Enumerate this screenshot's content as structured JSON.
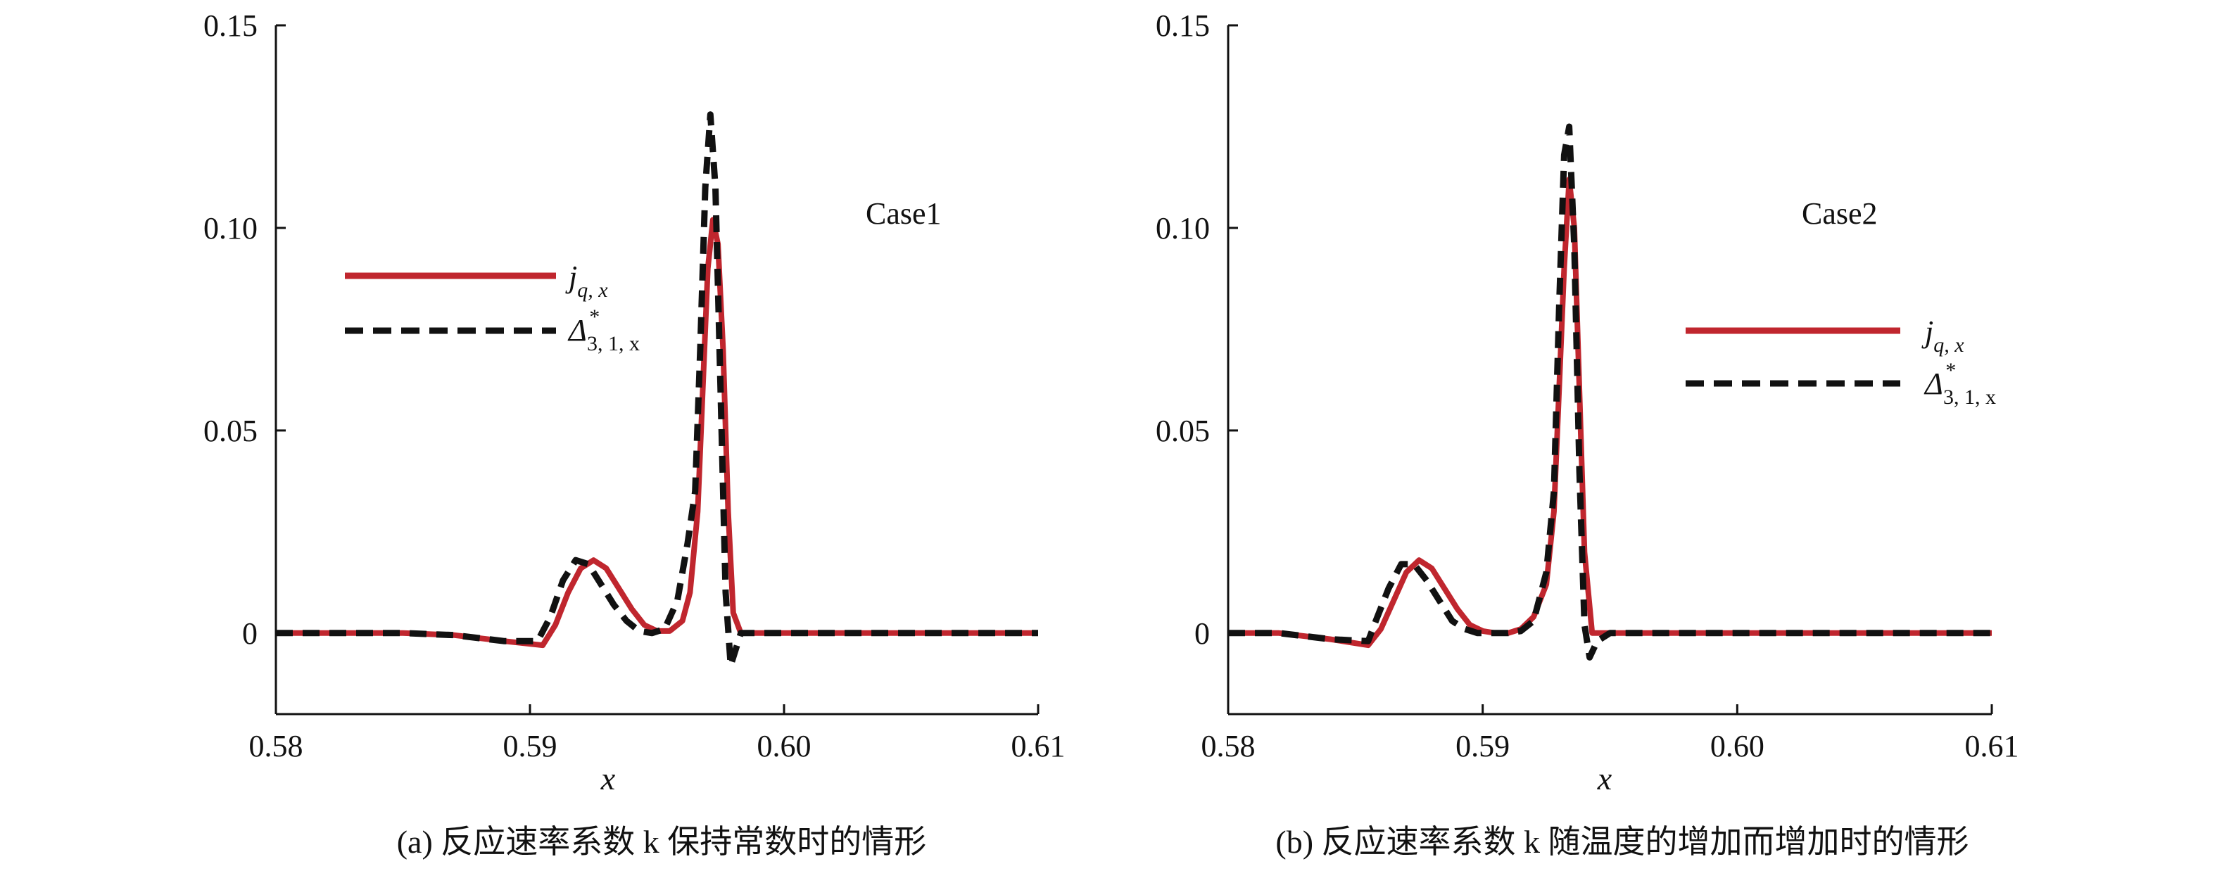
{
  "figure": {
    "panel_a_caption": "(a) 反应速率系数 k 保持常数时的情形",
    "panel_b_caption": "(b) 反应速率系数 k 随温度的增加而增加时的情形"
  },
  "legend": {
    "j_main": "j",
    "j_sub": "q, x",
    "d_main": "Δ",
    "d_sup": "*",
    "d_sub": "3, 1, x"
  },
  "colors": {
    "jq": "#c0262e",
    "delta": "#111111",
    "axis": "#111111"
  },
  "chart_data": [
    {
      "type": "line",
      "panel": "a",
      "annotation": "Case1",
      "title": "",
      "xlabel": "x",
      "ylabel": "",
      "xlim": [
        0.58,
        0.61
      ],
      "ylim": [
        -0.02,
        0.15
      ],
      "xticks": [
        "0.58",
        "0.59",
        "0.60",
        "0.61"
      ],
      "yticks": [
        "0",
        "0.05",
        "0.10",
        "0.15"
      ],
      "grid": false,
      "legend_position": "left, upper-middle",
      "series": [
        {
          "name": "j_{q,x}",
          "style": "solid",
          "x": [
            0.58,
            0.585,
            0.587,
            0.589,
            0.5905,
            0.591,
            0.5915,
            0.592,
            0.5925,
            0.593,
            0.5935,
            0.594,
            0.5945,
            0.595,
            0.5955,
            0.596,
            0.5963,
            0.5966,
            0.5968,
            0.597,
            0.5972,
            0.5974,
            0.5976,
            0.5978,
            0.598,
            0.5983,
            0.599,
            0.61
          ],
          "y": [
            0,
            0,
            -0.0005,
            -0.002,
            -0.003,
            0.002,
            0.01,
            0.016,
            0.018,
            0.016,
            0.011,
            0.006,
            0.002,
            0.0005,
            0.0005,
            0.003,
            0.01,
            0.03,
            0.06,
            0.09,
            0.102,
            0.096,
            0.07,
            0.03,
            0.005,
            0,
            0,
            0
          ]
        },
        {
          "name": "Δ*_{3,1,x}",
          "style": "dashed",
          "x": [
            0.58,
            0.585,
            0.587,
            0.589,
            0.5903,
            0.5908,
            0.5913,
            0.5918,
            0.5923,
            0.5928,
            0.5933,
            0.5938,
            0.5943,
            0.5948,
            0.5953,
            0.5958,
            0.5962,
            0.5965,
            0.5967,
            0.5969,
            0.5971,
            0.5973,
            0.5975,
            0.5977,
            0.5979,
            0.5981,
            0.5983,
            0.5986,
            0.599,
            0.61
          ],
          "y": [
            0,
            0,
            -0.0005,
            -0.002,
            -0.002,
            0.004,
            0.013,
            0.018,
            0.017,
            0.012,
            0.007,
            0.003,
            0.0005,
            0,
            0.001,
            0.008,
            0.022,
            0.035,
            0.07,
            0.11,
            0.128,
            0.11,
            0.06,
            0.01,
            -0.008,
            -0.004,
            0,
            0,
            0,
            0
          ]
        }
      ]
    },
    {
      "type": "line",
      "panel": "b",
      "annotation": "Case2",
      "title": "",
      "xlabel": "x",
      "ylabel": "",
      "xlim": [
        0.58,
        0.61
      ],
      "ylim": [
        -0.02,
        0.15
      ],
      "xticks": [
        "0.58",
        "0.59",
        "0.60",
        "0.61"
      ],
      "yticks": [
        "0",
        "0.05",
        "0.10",
        "0.15"
      ],
      "grid": false,
      "legend_position": "right, middle",
      "series": [
        {
          "name": "j_{q,x}",
          "style": "solid",
          "x": [
            0.58,
            0.582,
            0.584,
            0.5855,
            0.586,
            0.5865,
            0.587,
            0.5875,
            0.588,
            0.5885,
            0.589,
            0.5895,
            0.59,
            0.5905,
            0.591,
            0.5915,
            0.592,
            0.5925,
            0.5928,
            0.593,
            0.5932,
            0.5934,
            0.5936,
            0.5938,
            0.594,
            0.5943,
            0.595,
            0.61
          ],
          "y": [
            0,
            0,
            -0.0015,
            -0.003,
            0.001,
            0.008,
            0.015,
            0.018,
            0.016,
            0.011,
            0.006,
            0.002,
            0.0005,
            0,
            0,
            0.001,
            0.004,
            0.012,
            0.03,
            0.06,
            0.09,
            0.112,
            0.1,
            0.06,
            0.02,
            0,
            0,
            0
          ]
        },
        {
          "name": "Δ*_{3,1,x}",
          "style": "dashed",
          "x": [
            0.58,
            0.582,
            0.584,
            0.5855,
            0.5858,
            0.5863,
            0.5868,
            0.5873,
            0.5878,
            0.5883,
            0.5888,
            0.5893,
            0.5898,
            0.5905,
            0.591,
            0.5915,
            0.592,
            0.5925,
            0.5928,
            0.593,
            0.5932,
            0.5934,
            0.5936,
            0.5938,
            0.594,
            0.5942,
            0.5945,
            0.595,
            0.61
          ],
          "y": [
            0,
            0,
            -0.0015,
            -0.002,
            0.003,
            0.011,
            0.017,
            0.017,
            0.013,
            0.008,
            0.003,
            0.001,
            0,
            0,
            0,
            0.0005,
            0.003,
            0.015,
            0.035,
            0.08,
            0.118,
            0.125,
            0.095,
            0.04,
            0.002,
            -0.006,
            -0.002,
            0,
            0
          ]
        }
      ]
    }
  ]
}
